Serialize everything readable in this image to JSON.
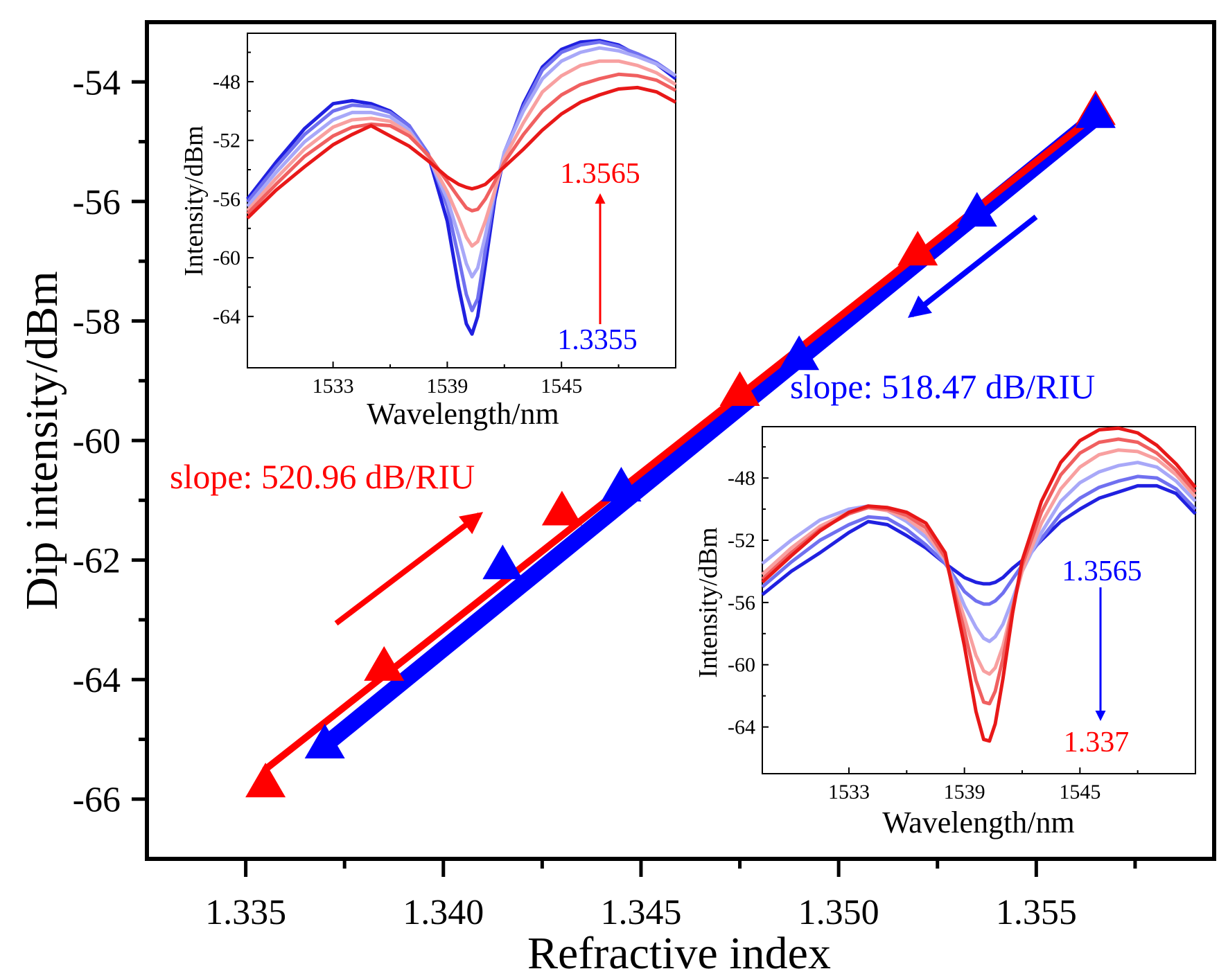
{
  "chart_data": [
    {
      "type": "scatter",
      "xlabel": "Refractive index",
      "ylabel": "Dip intensity/dBm",
      "xlim": [
        1.3325,
        1.3595
      ],
      "ylim": [
        -67.0,
        -53.0
      ],
      "x_ticks": [
        1.335,
        1.34,
        1.345,
        1.35,
        1.355
      ],
      "x_tick_labels": [
        "1.335",
        "1.340",
        "1.345",
        "1.350",
        "1.355"
      ],
      "y_ticks": [
        -54,
        -56,
        -58,
        -60,
        -62,
        -64,
        -66
      ],
      "y_tick_labels": [
        "-54",
        "-56",
        "-58",
        "-60",
        "-62",
        "-64",
        "-66"
      ],
      "grid": false,
      "series": [
        {
          "color": "#ff0000",
          "marker": "triangle",
          "points": [
            {
              "x": 1.3355,
              "y": -65.75
            },
            {
              "x": 1.3385,
              "y": -63.8
            },
            {
              "x": 1.343,
              "y": -61.2
            },
            {
              "x": 1.3475,
              "y": -59.2
            },
            {
              "x": 1.352,
              "y": -56.85
            },
            {
              "x": 1.3565,
              "y": -54.5
            }
          ],
          "fit": {
            "x": [
              1.3355,
              1.3565
            ],
            "y": [
              -65.5,
              -54.55
            ]
          },
          "slope_label": "slope: 520.96 dB/RIU"
        },
        {
          "color": "#0000ff",
          "marker": "triangle",
          "points": [
            {
              "x": 1.337,
              "y": -65.1
            },
            {
              "x": 1.3415,
              "y": -62.1
            },
            {
              "x": 1.3445,
              "y": -60.8
            },
            {
              "x": 1.349,
              "y": -58.6
            },
            {
              "x": 1.3535,
              "y": -56.2
            },
            {
              "x": 1.3565,
              "y": -54.55
            }
          ],
          "fit": {
            "x": [
              1.337,
              1.3565
            ],
            "y": [
              -65.1,
              -54.6
            ]
          },
          "slope_label": "slope: 518.47 dB/RIU"
        }
      ]
    },
    {
      "type": "line",
      "xlabel": "Wavelength/nm",
      "ylabel": "Intensity/dBm",
      "xlim": [
        1528.5,
        1551.0
      ],
      "ylim": [
        -67.5,
        -44.7
      ],
      "x_ticks": [
        1533,
        1539,
        1545
      ],
      "x_tick_labels": [
        "1533",
        "1539",
        "1545"
      ],
      "y_ticks": [
        -48,
        -52,
        -56,
        -60,
        -64
      ],
      "y_tick_labels": [
        "-48",
        "-52",
        "-56",
        "-60",
        "-64"
      ],
      "annotation_top": "1.3565",
      "annotation_bottom": "1.3355",
      "series": [
        {
          "color": "#2020e0",
          "x": [
            1528.5,
            1530,
            1531.5,
            1533,
            1534,
            1535,
            1536,
            1537,
            1538,
            1539,
            1539.6,
            1540,
            1540.3,
            1540.6,
            1541,
            1541.5,
            1542,
            1543,
            1544,
            1545,
            1546,
            1547,
            1548,
            1549,
            1550,
            1551
          ],
          "y": [
            -56,
            -53.5,
            -51.2,
            -49.5,
            -49.3,
            -49.5,
            -50,
            -51,
            -53,
            -57.5,
            -62,
            -64.5,
            -65.2,
            -64,
            -60.5,
            -56,
            -53,
            -49.5,
            -47,
            -45.8,
            -45.3,
            -45.2,
            -45.5,
            -46.2,
            -46.8,
            -47.8
          ]
        },
        {
          "color": "#7070f0",
          "x": [
            1528.5,
            1530,
            1531.5,
            1533,
            1534,
            1535,
            1536,
            1537,
            1538,
            1539,
            1539.6,
            1540,
            1540.3,
            1540.6,
            1541,
            1541.5,
            1542,
            1543,
            1544,
            1545,
            1546,
            1547,
            1548,
            1549,
            1550,
            1551
          ],
          "y": [
            -56.2,
            -53.8,
            -51.6,
            -50,
            -49.6,
            -49.7,
            -50.1,
            -51,
            -52.9,
            -56.5,
            -60,
            -62.5,
            -63.6,
            -62.8,
            -59.5,
            -55.6,
            -52.8,
            -49.7,
            -47.2,
            -46,
            -45.5,
            -45.3,
            -45.6,
            -46.1,
            -46.7,
            -47.6
          ]
        },
        {
          "color": "#a8a8f8",
          "x": [
            1528.5,
            1530,
            1531.5,
            1533,
            1534,
            1535,
            1536,
            1537,
            1538,
            1539,
            1539.6,
            1540,
            1540.3,
            1540.6,
            1541,
            1541.5,
            1542,
            1543,
            1544,
            1545,
            1546,
            1547,
            1548,
            1549,
            1550,
            1551
          ],
          "y": [
            -56.5,
            -54.2,
            -52.1,
            -50.6,
            -50.1,
            -50.1,
            -50.4,
            -51.3,
            -53.1,
            -56,
            -58.5,
            -60.4,
            -61.3,
            -60.7,
            -58.5,
            -55.4,
            -52.8,
            -50,
            -47.8,
            -46.6,
            -46,
            -45.7,
            -45.9,
            -46.3,
            -46.8,
            -47.6
          ]
        },
        {
          "color": "#f8a0a0",
          "x": [
            1528.5,
            1530,
            1531.5,
            1533,
            1534,
            1535,
            1536,
            1537,
            1538,
            1539,
            1539.6,
            1540,
            1540.3,
            1540.6,
            1541,
            1541.5,
            1542,
            1543,
            1544,
            1545,
            1546,
            1547,
            1548,
            1549,
            1550,
            1551
          ],
          "y": [
            -56.8,
            -54.6,
            -52.6,
            -51.1,
            -50.6,
            -50.5,
            -50.7,
            -51.5,
            -53.1,
            -55.5,
            -57.3,
            -58.6,
            -59.2,
            -58.9,
            -57.5,
            -55.4,
            -53.2,
            -50.8,
            -48.7,
            -47.6,
            -46.9,
            -46.6,
            -46.6,
            -46.9,
            -47.4,
            -48.2
          ]
        },
        {
          "color": "#f06060",
          "x": [
            1528.5,
            1530,
            1531.5,
            1533,
            1534,
            1535,
            1536,
            1537,
            1538,
            1539,
            1539.6,
            1540,
            1540.3,
            1540.6,
            1541,
            1541.5,
            1542,
            1543,
            1544,
            1545,
            1546,
            1547,
            1548,
            1549,
            1550,
            1551
          ],
          "y": [
            -57,
            -55,
            -53.1,
            -51.7,
            -51.1,
            -50.9,
            -51,
            -51.7,
            -53,
            -54.8,
            -55.9,
            -56.6,
            -56.8,
            -56.7,
            -56,
            -54.8,
            -53.5,
            -51.6,
            -50,
            -48.9,
            -48.2,
            -47.8,
            -47.5,
            -47.6,
            -47.9,
            -48.6
          ]
        },
        {
          "color": "#e81818",
          "x": [
            1528.5,
            1530,
            1531.5,
            1533,
            1534,
            1535,
            1536,
            1537,
            1538,
            1539,
            1539.6,
            1540,
            1540.3,
            1540.6,
            1541,
            1541.5,
            1542,
            1543,
            1544,
            1545,
            1546,
            1547,
            1548,
            1549,
            1550,
            1551
          ],
          "y": [
            -57.3,
            -55.4,
            -53.8,
            -52.3,
            -51.6,
            -51,
            -51.7,
            -52.4,
            -53.4,
            -54.5,
            -55,
            -55.2,
            -55.3,
            -55.2,
            -55,
            -54.4,
            -53.8,
            -52.6,
            -51.3,
            -50.2,
            -49.4,
            -48.9,
            -48.5,
            -48.4,
            -48.7,
            -49.4
          ]
        }
      ]
    },
    {
      "type": "line",
      "xlabel": "Wavelength/nm",
      "ylabel": "Intensity/dBm",
      "xlim": [
        1528.5,
        1551.0
      ],
      "ylim": [
        -67.0,
        -44.7
      ],
      "x_ticks": [
        1533,
        1539,
        1545
      ],
      "x_tick_labels": [
        "1533",
        "1539",
        "1545"
      ],
      "y_ticks": [
        -48,
        -52,
        -56,
        -60,
        -64
      ],
      "y_tick_labels": [
        "-48",
        "-52",
        "-56",
        "-60",
        "-64"
      ],
      "annotation_top": "1.3565",
      "annotation_bottom": "1.337",
      "series": [
        {
          "color": "#2020e0",
          "x": [
            1528.5,
            1530,
            1531.5,
            1533,
            1534,
            1535,
            1536,
            1537,
            1538,
            1539,
            1539.6,
            1540,
            1540.3,
            1540.6,
            1541,
            1541.5,
            1542,
            1543,
            1544,
            1545,
            1546,
            1547,
            1548,
            1549,
            1550,
            1551
          ],
          "y": [
            -55.5,
            -54,
            -52.8,
            -51.5,
            -50.8,
            -51,
            -51.7,
            -52.5,
            -53.5,
            -54.4,
            -54.7,
            -54.8,
            -54.8,
            -54.7,
            -54.4,
            -53.8,
            -53.3,
            -52,
            -50.8,
            -50,
            -49.3,
            -48.9,
            -48.5,
            -48.5,
            -49,
            -50.3
          ]
        },
        {
          "color": "#7070f0",
          "x": [
            1528.5,
            1530,
            1531.5,
            1533,
            1534,
            1535,
            1536,
            1537,
            1538,
            1539,
            1539.6,
            1540,
            1540.3,
            1540.6,
            1541,
            1541.5,
            1542,
            1543,
            1544,
            1545,
            1546,
            1547,
            1548,
            1549,
            1550,
            1551
          ],
          "y": [
            -55,
            -53.4,
            -52,
            -51,
            -50.5,
            -50.6,
            -51.3,
            -52.3,
            -53.5,
            -55.3,
            -55.9,
            -56.1,
            -56.1,
            -55.9,
            -55.4,
            -54.5,
            -53.6,
            -51.9,
            -50.3,
            -49.3,
            -48.6,
            -48.2,
            -47.9,
            -48,
            -48.7,
            -50
          ]
        },
        {
          "color": "#a8a8f8",
          "x": [
            1528.5,
            1530,
            1531.5,
            1533,
            1534,
            1535,
            1536,
            1537,
            1538,
            1539,
            1539.6,
            1540,
            1540.3,
            1540.6,
            1541,
            1541.5,
            1542,
            1543,
            1544,
            1545,
            1546,
            1547,
            1548,
            1549,
            1550,
            1551
          ],
          "y": [
            -53.5,
            -52,
            -50.7,
            -50,
            -49.8,
            -50.1,
            -50.8,
            -51.8,
            -53.3,
            -56.2,
            -57.6,
            -58.3,
            -58.5,
            -58.2,
            -57.4,
            -55.8,
            -54,
            -51.5,
            -49.5,
            -48.3,
            -47.6,
            -47.2,
            -47,
            -47.3,
            -48.2,
            -49.5
          ]
        },
        {
          "color": "#f8a0a0",
          "x": [
            1528.5,
            1530,
            1531.5,
            1533,
            1534,
            1535,
            1536,
            1537,
            1538,
            1539,
            1539.6,
            1540,
            1540.3,
            1540.6,
            1541,
            1541.5,
            1542,
            1543,
            1544,
            1545,
            1546,
            1547,
            1548,
            1549,
            1550,
            1551
          ],
          "y": [
            -54.2,
            -52.5,
            -51.1,
            -50.2,
            -49.9,
            -50.1,
            -50.6,
            -51.5,
            -53.2,
            -57,
            -59.4,
            -60.4,
            -60.6,
            -60.2,
            -58.8,
            -56.3,
            -54,
            -50.9,
            -48.7,
            -47.3,
            -46.5,
            -46.2,
            -46.3,
            -46.8,
            -47.8,
            -49.2
          ]
        },
        {
          "color": "#f06060",
          "x": [
            1528.5,
            1530,
            1531.5,
            1533,
            1534,
            1535,
            1536,
            1537,
            1538,
            1539,
            1539.6,
            1540,
            1540.3,
            1540.6,
            1541,
            1541.5,
            1542,
            1543,
            1544,
            1545,
            1546,
            1547,
            1548,
            1549,
            1550,
            1551
          ],
          "y": [
            -54.5,
            -52.8,
            -51.3,
            -50.3,
            -49.9,
            -50,
            -50.4,
            -51.2,
            -53.1,
            -57.8,
            -61,
            -62.4,
            -62.5,
            -61.7,
            -59.6,
            -56.4,
            -53.6,
            -50.2,
            -47.8,
            -46.4,
            -45.7,
            -45.5,
            -45.7,
            -46.4,
            -47.5,
            -48.9
          ]
        },
        {
          "color": "#e81818",
          "x": [
            1528.5,
            1530,
            1531.5,
            1533,
            1534,
            1535,
            1536,
            1537,
            1538,
            1539,
            1539.6,
            1540,
            1540.3,
            1540.6,
            1541,
            1541.5,
            1542,
            1543,
            1544,
            1545,
            1546,
            1547,
            1548,
            1549,
            1550,
            1551
          ],
          "y": [
            -54.7,
            -53,
            -51.4,
            -50.2,
            -49.8,
            -49.9,
            -50.2,
            -50.9,
            -52.8,
            -58.8,
            -63,
            -64.8,
            -64.9,
            -63.8,
            -60.9,
            -56.7,
            -53.3,
            -49.5,
            -47,
            -45.6,
            -44.9,
            -44.8,
            -45.1,
            -45.9,
            -47.1,
            -48.6
          ]
        }
      ]
    }
  ]
}
